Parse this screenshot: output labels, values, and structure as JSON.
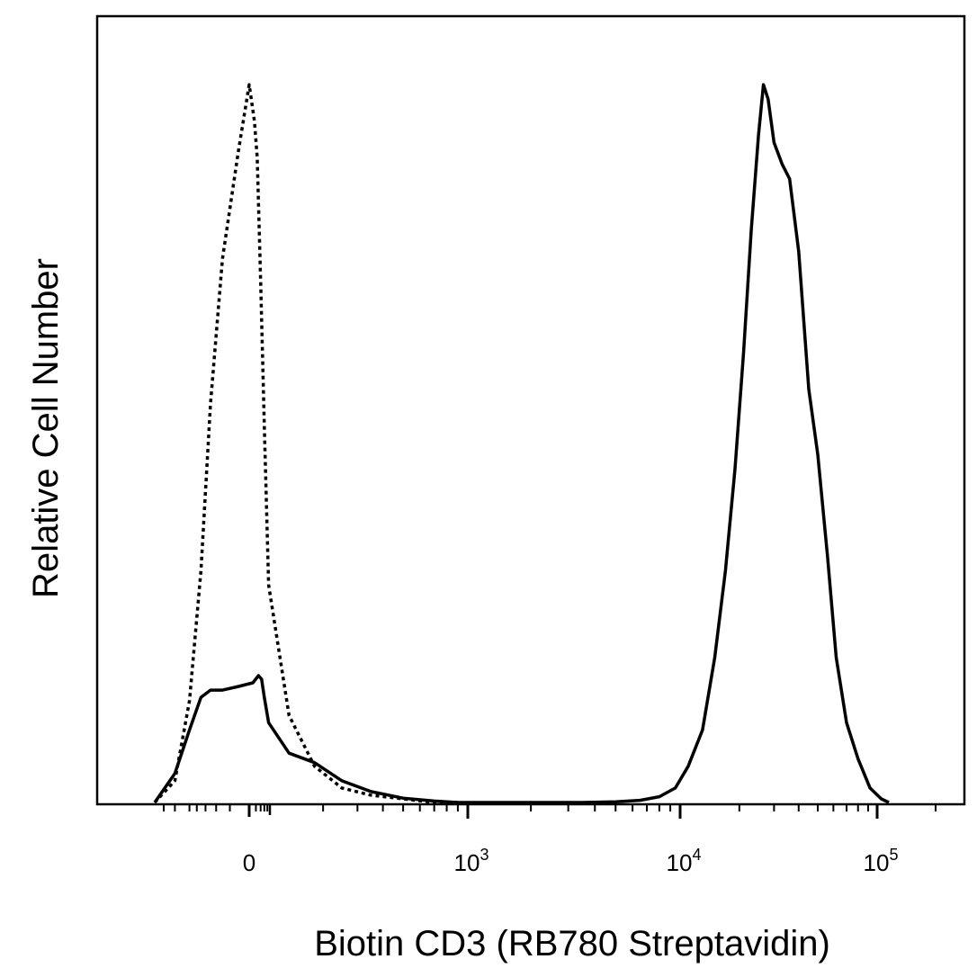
{
  "chart_data": {
    "type": "line",
    "title": "",
    "xlabel": "Biotin CD3  (RB780 Streptavidin)",
    "ylabel": "Relative Cell Number",
    "x_scale": "biexponential",
    "xlim": [
      -200,
      200000
    ],
    "ylim": [
      0,
      1
    ],
    "x_tick_labels": [
      {
        "value": 0,
        "base": "0",
        "exp": ""
      },
      {
        "value": 1000,
        "base": "10",
        "exp": "3"
      },
      {
        "value": 10000,
        "base": "10",
        "exp": "4"
      },
      {
        "value": 100000,
        "base": "10",
        "exp": "5"
      }
    ],
    "grid": false,
    "legend": "none",
    "series": [
      {
        "style": "dotted",
        "color": "#000000",
        "x": [
          -250,
          -150,
          -100,
          -70,
          -50,
          -30,
          -10,
          0,
          15,
          25,
          40,
          60,
          90,
          130,
          180,
          250,
          350,
          500,
          700,
          900
        ],
        "y": [
          0.0,
          0.03,
          0.14,
          0.32,
          0.55,
          0.75,
          0.9,
          0.99,
          0.94,
          0.89,
          0.72,
          0.52,
          0.3,
          0.12,
          0.05,
          0.02,
          0.01,
          0.005,
          0.0,
          0.0
        ]
      },
      {
        "style": "solid",
        "color": "#000000",
        "x": [
          -250,
          -150,
          -100,
          -70,
          -50,
          -30,
          -10,
          10,
          30,
          45,
          60,
          90,
          130,
          180,
          250,
          350,
          500,
          700,
          900,
          1200,
          2000,
          3500,
          5000,
          6500,
          8000,
          9500,
          11000,
          13000,
          15000,
          17000,
          19000,
          21000,
          23000,
          25000,
          26500,
          28000,
          30000,
          33000,
          36000,
          40000,
          45000,
          50000,
          56000,
          62000,
          70000,
          80000,
          92000,
          105000,
          115000
        ],
        "y": [
          0.0,
          0.04,
          0.1,
          0.145,
          0.155,
          0.155,
          0.16,
          0.165,
          0.175,
          0.17,
          0.145,
          0.11,
          0.068,
          0.055,
          0.03,
          0.015,
          0.006,
          0.002,
          0.0,
          0.0,
          0.0,
          0.0,
          0.001,
          0.003,
          0.008,
          0.02,
          0.05,
          0.1,
          0.2,
          0.32,
          0.46,
          0.62,
          0.79,
          0.92,
          0.99,
          0.97,
          0.91,
          0.88,
          0.86,
          0.76,
          0.57,
          0.48,
          0.34,
          0.2,
          0.11,
          0.06,
          0.02,
          0.005,
          0.0
        ]
      }
    ]
  }
}
